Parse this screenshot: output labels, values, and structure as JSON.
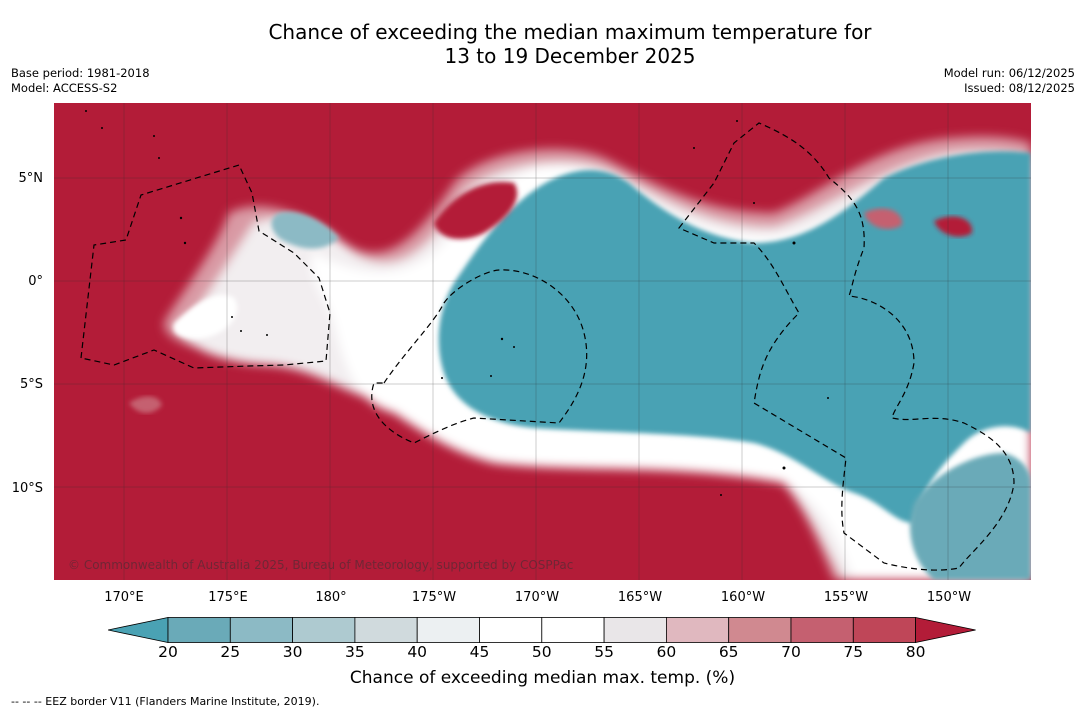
{
  "title": {
    "line1": "Chance of exceeding the median maximum temperature for",
    "line2": "13 to 19 December 2025"
  },
  "meta": {
    "base_period": "Base period: 1981-2018",
    "model": "Model: ACCESS-S2",
    "model_run": "Model run: 06/12/2025",
    "issued": "Issued: 08/12/2025"
  },
  "map": {
    "lat_labels": [
      "5°N",
      "0°",
      "5°S",
      "10°S"
    ],
    "lon_labels": [
      "170°E",
      "175°E",
      "180°",
      "175°W",
      "170°W",
      "165°W",
      "160°W",
      "155°W",
      "150°W"
    ],
    "copyright": "© Commonwealth of Australia 2025, Bureau of Meteorology, supported by COSPPac",
    "colors": {
      "above_80": "#b31c38",
      "below_20": "#4aa2b4"
    }
  },
  "colorbar": {
    "ticks": [
      "20",
      "25",
      "30",
      "35",
      "40",
      "45",
      "50",
      "55",
      "60",
      "65",
      "70",
      "75",
      "80"
    ],
    "colors": [
      "#4aa2b4",
      "#6aaab8",
      "#8cbac5",
      "#aecad0",
      "#d0dadd",
      "#ecf0f2",
      "#ffffff",
      "#ffffff",
      "#e9e6e8",
      "#e0b8bf",
      "#d08990",
      "#c56070",
      "#bf4658",
      "#b31c38"
    ],
    "label": "Chance of exceeding median max. temp. (%)"
  },
  "footer": "--  --  -- EEZ border V11 (Flanders Marine Institute, 2019)."
}
